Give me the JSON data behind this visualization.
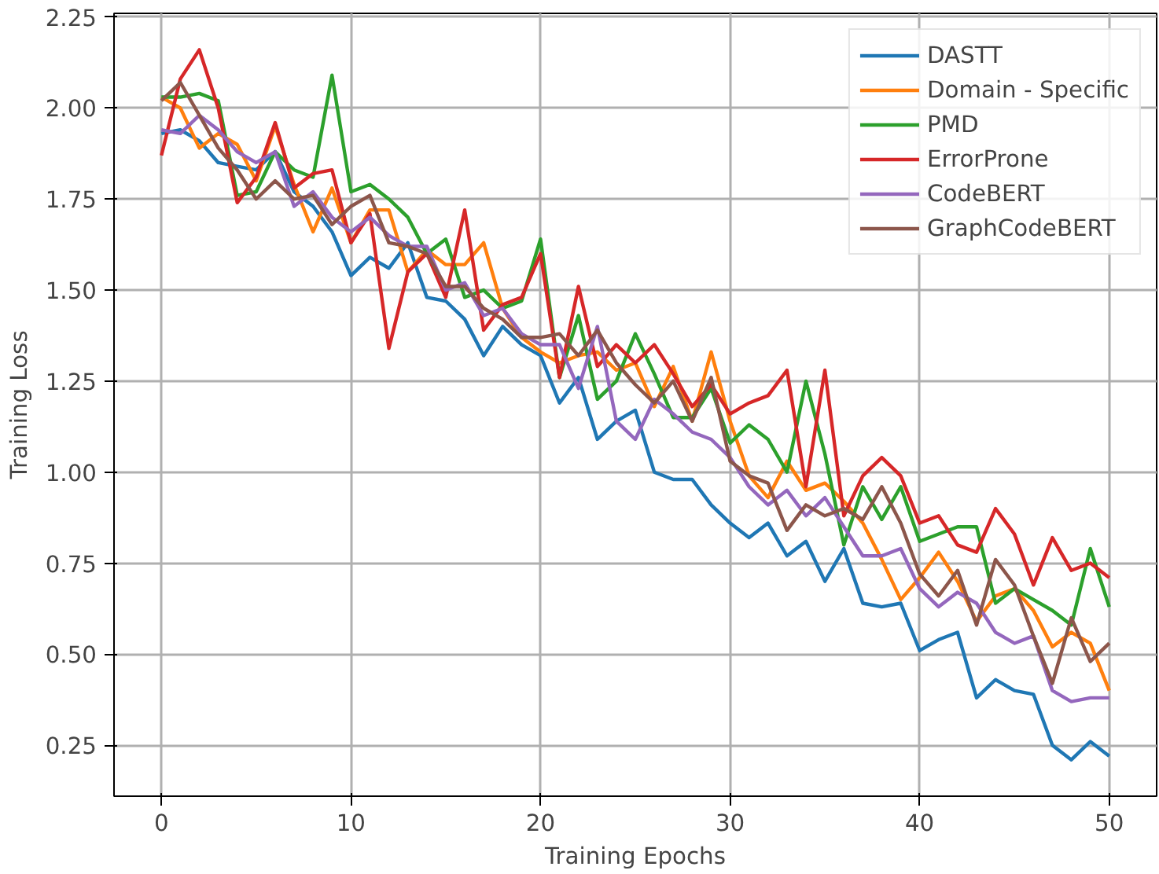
{
  "chart_data": {
    "type": "line",
    "xlabel": "Training Epochs",
    "ylabel": "Training Loss",
    "x": [
      0,
      1,
      2,
      3,
      4,
      5,
      6,
      7,
      8,
      9,
      10,
      11,
      12,
      13,
      14,
      15,
      16,
      17,
      18,
      19,
      20,
      21,
      22,
      23,
      24,
      25,
      26,
      27,
      28,
      29,
      30,
      31,
      32,
      33,
      34,
      35,
      36,
      37,
      38,
      39,
      40,
      41,
      42,
      43,
      44,
      45,
      46,
      47,
      48,
      49,
      50
    ],
    "xlim": [
      -2.5,
      52.5
    ],
    "ylim": [
      0.11,
      2.26
    ],
    "xticks": [
      0,
      10,
      20,
      30,
      40,
      50
    ],
    "yticks": [
      {
        "value": 0.25,
        "label": "0.25"
      },
      {
        "value": 0.5,
        "label": "0.50"
      },
      {
        "value": 0.75,
        "label": "0.75"
      },
      {
        "value": 1.0,
        "label": "1.00"
      },
      {
        "value": 1.25,
        "label": "1.25"
      },
      {
        "value": 1.5,
        "label": "1.50"
      },
      {
        "value": 1.75,
        "label": "1.75"
      },
      {
        "value": 2.0,
        "label": "2.00"
      },
      {
        "value": 2.25,
        "label": "2.25"
      }
    ],
    "grid": true,
    "legend": "top right",
    "marker": "none",
    "line_style": "solid",
    "series": [
      {
        "name": "DASTT",
        "color": "#1f77b4",
        "values": [
          1.93,
          1.94,
          1.91,
          1.85,
          1.84,
          1.83,
          1.88,
          1.77,
          1.73,
          1.66,
          1.54,
          1.59,
          1.56,
          1.63,
          1.48,
          1.47,
          1.42,
          1.32,
          1.4,
          1.35,
          1.32,
          1.19,
          1.26,
          1.09,
          1.14,
          1.17,
          1.0,
          0.98,
          0.98,
          0.91,
          0.86,
          0.82,
          0.86,
          0.77,
          0.81,
          0.7,
          0.79,
          0.64,
          0.63,
          0.64,
          0.51,
          0.54,
          0.56,
          0.38,
          0.43,
          0.4,
          0.39,
          0.25,
          0.21,
          0.26,
          0.22
        ]
      },
      {
        "name": "Domain - Specific",
        "color": "#ff7f0e",
        "values": [
          2.03,
          2.0,
          1.89,
          1.93,
          1.9,
          1.8,
          1.95,
          1.79,
          1.66,
          1.78,
          1.63,
          1.72,
          1.72,
          1.55,
          1.61,
          1.57,
          1.57,
          1.63,
          1.45,
          1.37,
          1.33,
          1.3,
          1.32,
          1.33,
          1.28,
          1.3,
          1.18,
          1.29,
          1.14,
          1.33,
          1.14,
          0.99,
          0.93,
          1.03,
          0.95,
          0.97,
          0.92,
          0.86,
          0.76,
          0.65,
          0.71,
          0.78,
          0.7,
          0.59,
          0.66,
          0.68,
          0.62,
          0.52,
          0.56,
          0.53,
          0.4
        ]
      },
      {
        "name": "PMD",
        "color": "#2ca02c",
        "values": [
          2.03,
          2.03,
          2.04,
          2.02,
          1.76,
          1.77,
          1.88,
          1.83,
          1.81,
          2.09,
          1.77,
          1.79,
          1.75,
          1.7,
          1.6,
          1.64,
          1.48,
          1.5,
          1.45,
          1.47,
          1.64,
          1.26,
          1.43,
          1.2,
          1.25,
          1.38,
          1.27,
          1.15,
          1.15,
          1.23,
          1.08,
          1.13,
          1.09,
          1.0,
          1.25,
          1.05,
          0.8,
          0.96,
          0.87,
          0.96,
          0.81,
          0.83,
          0.85,
          0.85,
          0.64,
          0.68,
          0.65,
          0.62,
          0.58,
          0.79,
          0.63
        ]
      },
      {
        "name": "ErrorProne",
        "color": "#d62728",
        "values": [
          1.87,
          2.08,
          2.16,
          2.0,
          1.74,
          1.81,
          1.96,
          1.78,
          1.82,
          1.83,
          1.63,
          1.71,
          1.34,
          1.55,
          1.6,
          1.48,
          1.72,
          1.39,
          1.46,
          1.48,
          1.6,
          1.26,
          1.51,
          1.29,
          1.35,
          1.3,
          1.35,
          1.27,
          1.18,
          1.24,
          1.16,
          1.19,
          1.21,
          1.28,
          0.96,
          1.28,
          0.88,
          0.99,
          1.04,
          0.99,
          0.86,
          0.88,
          0.8,
          0.78,
          0.9,
          0.83,
          0.69,
          0.82,
          0.73,
          0.75,
          0.71
        ]
      },
      {
        "name": "CodeBERT",
        "color": "#9467bd",
        "values": [
          1.94,
          1.93,
          1.98,
          1.94,
          1.88,
          1.85,
          1.88,
          1.73,
          1.77,
          1.7,
          1.66,
          1.7,
          1.65,
          1.62,
          1.62,
          1.5,
          1.52,
          1.43,
          1.45,
          1.38,
          1.35,
          1.35,
          1.23,
          1.4,
          1.14,
          1.09,
          1.2,
          1.16,
          1.11,
          1.09,
          1.04,
          0.96,
          0.91,
          0.95,
          0.88,
          0.93,
          0.85,
          0.77,
          0.77,
          0.79,
          0.68,
          0.63,
          0.67,
          0.64,
          0.56,
          0.53,
          0.55,
          0.4,
          0.37,
          0.38,
          0.38
        ]
      },
      {
        "name": "GraphCodeBERT",
        "color": "#8c564b",
        "values": [
          2.02,
          2.07,
          1.98,
          1.89,
          1.83,
          1.75,
          1.8,
          1.75,
          1.76,
          1.68,
          1.73,
          1.76,
          1.63,
          1.62,
          1.6,
          1.51,
          1.51,
          1.45,
          1.42,
          1.37,
          1.37,
          1.38,
          1.32,
          1.39,
          1.3,
          1.24,
          1.19,
          1.25,
          1.14,
          1.26,
          1.03,
          0.99,
          0.97,
          0.84,
          0.91,
          0.88,
          0.9,
          0.87,
          0.96,
          0.86,
          0.72,
          0.66,
          0.73,
          0.58,
          0.76,
          0.69,
          0.55,
          0.42,
          0.6,
          0.48,
          0.53
        ]
      }
    ]
  }
}
